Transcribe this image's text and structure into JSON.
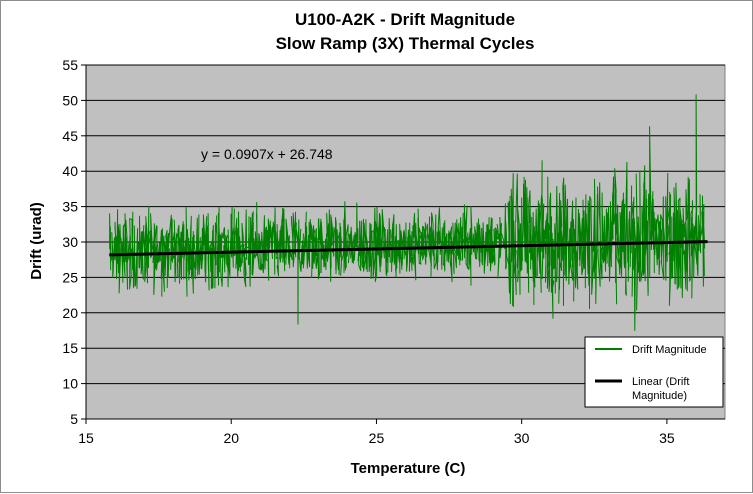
{
  "chart_data": {
    "type": "line",
    "title": "U100-A2K  - Drift Magnitude",
    "subtitle": "Slow Ramp (3X) Thermal Cycles",
    "xlabel": "Temperature (C)",
    "ylabel": "Drift (urad)",
    "xlim": [
      15,
      37
    ],
    "ylim": [
      5,
      55
    ],
    "x_ticks": [
      "15",
      "20",
      "25",
      "30",
      "35"
    ],
    "y_ticks": [
      "5",
      "10",
      "15",
      "20",
      "25",
      "30",
      "35",
      "40",
      "45",
      "50",
      "55"
    ],
    "grid": true,
    "plot_background": "#c0c0c0",
    "legend_position": "bottom-right",
    "trendline": {
      "name": "Linear (Drift Magnitude)",
      "equation": "y = 0.0907x + 26.748",
      "slope": 0.0907,
      "intercept": 26.748,
      "x_range": [
        15.8,
        36.4
      ],
      "color": "#000000"
    },
    "series": [
      {
        "name": "Drift Magnitude",
        "color": "#008000",
        "x_range": [
          15.8,
          36.3
        ],
        "noise_bands": [
          {
            "x": [
              15.8,
              29.5
            ],
            "y": [
              18.5,
              37
            ]
          },
          {
            "x": [
              29.5,
              34.5
            ],
            "y": [
              17,
              47
            ]
          },
          {
            "x": [
              34.5,
              36.3
            ],
            "y": [
              18,
              51
            ]
          }
        ],
        "peaks": [
          {
            "x": 30.7,
            "y": 41.5
          },
          {
            "x": 34.4,
            "y": 46.3
          },
          {
            "x": 36.0,
            "y": 50.8
          },
          {
            "x": 22.3,
            "y": 18.4
          },
          {
            "x": 33.9,
            "y": 17.5
          }
        ]
      }
    ]
  }
}
